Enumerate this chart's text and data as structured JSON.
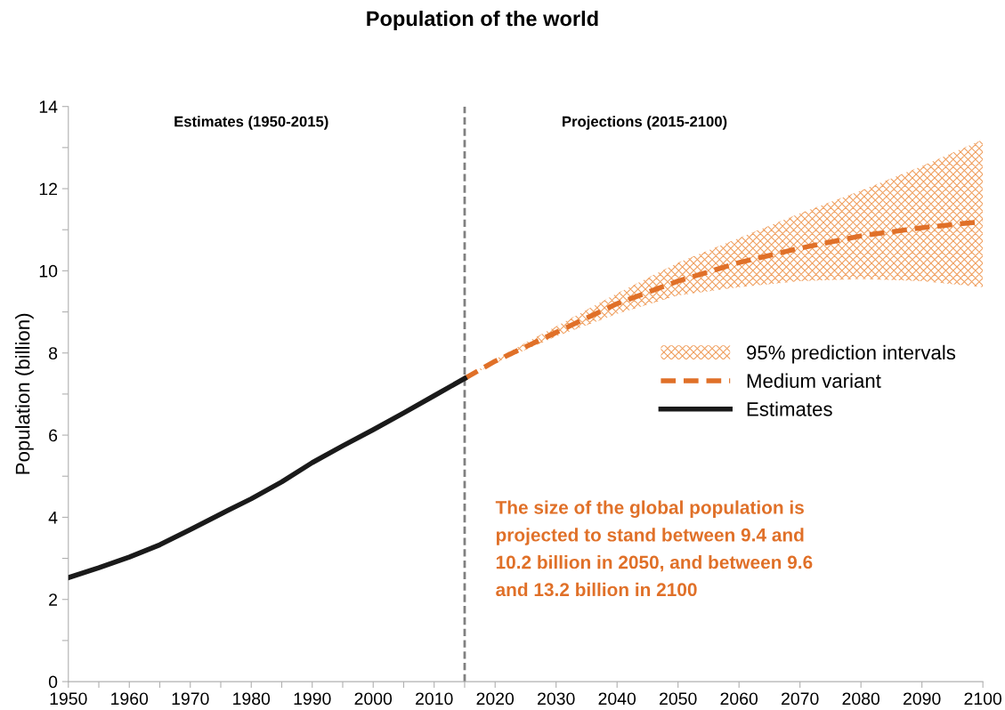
{
  "chart_data": {
    "type": "line",
    "title": "Population of the world",
    "ylabel": "Population (billion)",
    "xlim": [
      1950,
      2100
    ],
    "ylim": [
      0,
      14
    ],
    "xticks": [
      1950,
      {
        "value": 1955,
        "label": null
      },
      1960,
      {
        "value": 1965,
        "label": null
      },
      1970,
      {
        "value": 1975,
        "label": null
      },
      1980,
      {
        "value": 1985,
        "label": null
      },
      1990,
      {
        "value": 1995,
        "label": null
      },
      2000,
      {
        "value": 2005,
        "label": null
      },
      2010,
      {
        "value": 2015,
        "label": null
      },
      2020,
      2030,
      2040,
      2050,
      2060,
      2070,
      2080,
      2090,
      2100
    ],
    "yticks": [
      0,
      {
        "value": 1,
        "label": null
      },
      2,
      {
        "value": 3,
        "label": null
      },
      4,
      {
        "value": 5,
        "label": null
      },
      6,
      {
        "value": 7,
        "label": null
      },
      8,
      {
        "value": 9,
        "label": null
      },
      10,
      {
        "value": 11,
        "label": null
      },
      12,
      {
        "value": 13,
        "label": null
      },
      14
    ],
    "grid": false,
    "legend": "right",
    "series": [
      {
        "name": "95% prediction intervals",
        "type": "area",
        "color": "#f0a060"
      },
      {
        "name": "Medium variant",
        "line_style": "dashed",
        "color": "#e07028",
        "x": [
          2015,
          2020,
          2030,
          2040,
          2050,
          2060,
          2070,
          2080,
          2090,
          2100
        ],
        "values": [
          7.38,
          7.8,
          8.5,
          9.2,
          9.75,
          10.2,
          10.55,
          10.85,
          11.05,
          11.2
        ],
        "lower": [
          7.38,
          7.75,
          8.4,
          8.95,
          9.4,
          9.6,
          9.75,
          9.8,
          9.75,
          9.6
        ],
        "upper": [
          7.38,
          7.85,
          8.65,
          9.45,
          10.2,
          10.8,
          11.4,
          11.95,
          12.55,
          13.2
        ]
      },
      {
        "name": "Estimates",
        "line_style": "solid",
        "color": "#1a1a1a",
        "x": [
          1950,
          1955,
          1960,
          1965,
          1970,
          1975,
          1980,
          1985,
          1990,
          1995,
          2000,
          2005,
          2010,
          2015
        ],
        "values": [
          2.53,
          2.77,
          3.03,
          3.33,
          3.7,
          4.08,
          4.45,
          4.86,
          5.33,
          5.74,
          6.13,
          6.54,
          6.96,
          7.38
        ]
      }
    ],
    "ref_lines": [
      {
        "axis": "x",
        "value": 2015,
        "color": "#808080",
        "line_style": "dashed"
      }
    ],
    "annotations": [
      "Estimates (1950-2015)",
      "Projections (2015-2100)",
      "The size of the global population is\nprojected to stand between 9.4 and\n10.2 billion in 2050, and between 9.6\nand 13.2 billion in 2100"
    ]
  }
}
